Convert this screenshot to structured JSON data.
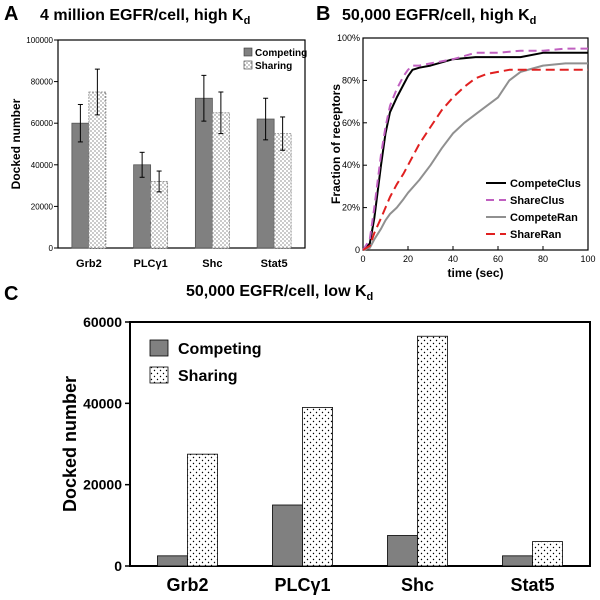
{
  "panels": {
    "a": {
      "letter": "A",
      "title_main": "4 million EGFR/cell, high K",
      "title_sub": "d"
    },
    "b": {
      "letter": "B",
      "title_main": "50,000 EGFR/cell, high K",
      "title_sub": "d"
    },
    "c": {
      "letter": "C",
      "title_main": "50,000 EGFR/cell, low K",
      "title_sub": "d"
    }
  },
  "chart_data": [
    {
      "type": "bar",
      "title": "4 million EGFR/cell, high Kd",
      "xlabel": "",
      "ylabel": "Docked number",
      "categories": [
        "Grb2",
        "PLCγ1",
        "Shc",
        "Stat5"
      ],
      "series": [
        {
          "name": "Competing",
          "values": [
            60000,
            40000,
            72000,
            62000
          ],
          "errors": [
            9000,
            6000,
            11000,
            10000
          ],
          "color": "#808080",
          "pattern": "solid"
        },
        {
          "name": "Sharing",
          "values": [
            75000,
            32000,
            65000,
            55000
          ],
          "errors": [
            11000,
            5000,
            10000,
            8000
          ],
          "color": "#ffffff",
          "pattern": "dots"
        }
      ],
      "ylim": [
        0,
        100000
      ],
      "yticks": [
        0,
        20000,
        40000,
        60000,
        80000,
        100000
      ],
      "legend": "top-right",
      "grid": false
    },
    {
      "type": "line",
      "title": "50,000 EGFR/cell, high Kd",
      "xlabel": "time (sec)",
      "ylabel": "Fraction of receptors",
      "xlim": [
        0,
        100
      ],
      "ylim": [
        0,
        100
      ],
      "xticks": [
        0,
        20,
        40,
        60,
        80,
        100
      ],
      "yticks": [
        0,
        20,
        40,
        60,
        80,
        100
      ],
      "ytick_labels": [
        "0",
        "20%",
        "40%",
        "60%",
        "80%",
        "100%"
      ],
      "legend": "bottom-right",
      "grid": false,
      "series": [
        {
          "name": "CompeteClus",
          "color": "#000000",
          "dash": "",
          "x": [
            0,
            3,
            5,
            8,
            10,
            12,
            15,
            18,
            20,
            22,
            25,
            30,
            40,
            50,
            60,
            70,
            80,
            90,
            100
          ],
          "y": [
            0,
            3,
            15,
            40,
            55,
            65,
            72,
            78,
            82,
            85,
            86,
            87,
            90,
            91,
            91,
            91,
            93,
            93,
            93
          ]
        },
        {
          "name": "ShareClus",
          "color": "#c060c0",
          "dash": "8,5",
          "x": [
            0,
            3,
            5,
            8,
            10,
            12,
            15,
            18,
            20,
            22,
            25,
            30,
            40,
            50,
            60,
            70,
            80,
            90,
            100
          ],
          "y": [
            0,
            5,
            20,
            45,
            58,
            68,
            76,
            82,
            85,
            87,
            87,
            88,
            90,
            93,
            93,
            94,
            94,
            95,
            95
          ]
        },
        {
          "name": "CompeteRan",
          "color": "#909090",
          "dash": "",
          "x": [
            0,
            3,
            5,
            8,
            10,
            12,
            15,
            18,
            20,
            25,
            30,
            35,
            40,
            45,
            50,
            55,
            60,
            65,
            70,
            80,
            90,
            100
          ],
          "y": [
            0,
            1,
            5,
            10,
            14,
            17,
            20,
            24,
            27,
            33,
            40,
            48,
            55,
            60,
            64,
            68,
            72,
            80,
            84,
            87,
            88,
            88
          ]
        },
        {
          "name": "ShareRan",
          "color": "#e02020",
          "dash": "9,5",
          "x": [
            0,
            3,
            5,
            8,
            10,
            12,
            15,
            18,
            20,
            25,
            30,
            35,
            40,
            45,
            50,
            55,
            60,
            65,
            70,
            80,
            90,
            100
          ],
          "y": [
            0,
            2,
            8,
            15,
            20,
            25,
            31,
            36,
            40,
            50,
            58,
            66,
            72,
            77,
            81,
            83,
            84,
            85,
            85,
            85,
            85,
            85
          ]
        }
      ]
    },
    {
      "type": "bar",
      "title": "50,000 EGFR/cell, low Kd",
      "xlabel": "",
      "ylabel": "Docked number",
      "categories": [
        "Grb2",
        "PLCγ1",
        "Shc",
        "Stat5"
      ],
      "series": [
        {
          "name": "Competing",
          "values": [
            2500,
            15000,
            7500,
            2500
          ],
          "color": "#808080",
          "pattern": "solid"
        },
        {
          "name": "Sharing",
          "values": [
            27500,
            39000,
            56500,
            6000
          ],
          "color": "#ffffff",
          "pattern": "dots"
        }
      ],
      "ylim": [
        0,
        60000
      ],
      "yticks": [
        0,
        20000,
        40000,
        60000
      ],
      "legend": "top-left",
      "grid": false
    }
  ]
}
